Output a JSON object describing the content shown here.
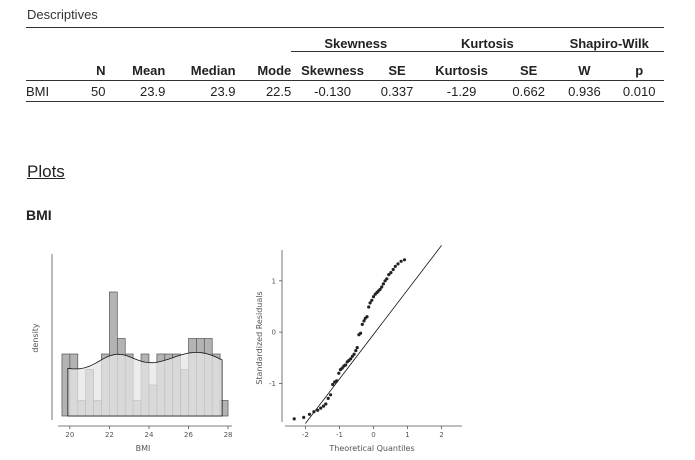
{
  "section_title": "Descriptives",
  "table": {
    "groups": [
      "Skewness",
      "Kurtosis",
      "Shapiro-Wilk"
    ],
    "headers": [
      "",
      "N",
      "Mean",
      "Median",
      "Mode",
      "Skewness",
      "SE",
      "Kurtosis",
      "SE",
      "W",
      "p"
    ],
    "rows": [
      [
        "BMI",
        "50",
        "23.9",
        "23.9",
        "22.5",
        "-0.130",
        "0.337",
        "-1.29",
        "0.662",
        "0.936",
        "0.010"
      ]
    ]
  },
  "plots_heading": "Plots",
  "variable_heading": "BMI",
  "histogram": {
    "ylabel": "density",
    "xlabel": "BMI",
    "x_ticks": [
      "20",
      "22",
      "24",
      "26",
      "28"
    ]
  },
  "qq": {
    "ylabel": "Standardized Residuals",
    "xlabel": "Theoretical Quantiles",
    "x_ticks": [
      "-2",
      "-1",
      "0",
      "1",
      "2"
    ],
    "y_ticks": [
      "1",
      "0",
      "-1"
    ]
  },
  "chart_data": [
    {
      "type": "bar",
      "title": "",
      "xlabel": "BMI",
      "ylabel": "density",
      "x_range": [
        19.4,
        28.2
      ],
      "bin_edges": [
        19.6,
        20.0,
        20.4,
        20.8,
        21.2,
        21.6,
        22.0,
        22.4,
        22.8,
        23.2,
        23.6,
        24.0,
        24.4,
        24.8,
        25.2,
        25.6,
        26.0,
        26.4,
        26.8,
        27.2,
        27.6,
        28.0
      ],
      "counts": [
        4,
        4,
        1,
        3,
        1,
        4,
        8,
        5,
        4,
        1,
        4,
        2,
        4,
        4,
        4,
        3,
        5,
        5,
        5,
        4,
        1
      ],
      "colors": {
        "bars": "#b3b3b3",
        "density_fill": "#e6e6e6",
        "edge": "#555555"
      }
    },
    {
      "type": "scatter",
      "title": "",
      "xlabel": "Theoretical Quantiles",
      "ylabel": "Standardized Residuals",
      "xlim": [
        -2.6,
        2.6
      ],
      "ylim": [
        -1.75,
        1.6
      ],
      "points": [
        [
          -2.33,
          -1.69
        ],
        [
          -2.05,
          -1.66
        ],
        [
          -1.88,
          -1.6
        ],
        [
          -1.75,
          -1.55
        ],
        [
          -1.64,
          -1.52
        ],
        [
          -1.55,
          -1.48
        ],
        [
          -1.47,
          -1.44
        ],
        [
          -1.4,
          -1.4
        ],
        [
          -1.33,
          -1.29
        ],
        [
          -1.26,
          -1.22
        ],
        [
          -1.2,
          -1.02
        ],
        [
          -1.14,
          -0.97
        ],
        [
          -1.08,
          -0.95
        ],
        [
          -1.02,
          -0.8
        ],
        [
          -0.97,
          -0.73
        ],
        [
          -0.92,
          -0.7
        ],
        [
          -0.87,
          -0.66
        ],
        [
          -0.82,
          -0.64
        ],
        [
          -0.77,
          -0.58
        ],
        [
          -0.72,
          -0.55
        ],
        [
          -0.67,
          -0.52
        ],
        [
          -0.62,
          -0.47
        ],
        [
          -0.57,
          -0.43
        ],
        [
          -0.52,
          -0.36
        ],
        [
          -0.48,
          -0.3
        ],
        [
          -0.43,
          -0.05
        ],
        [
          -0.38,
          -0.02
        ],
        [
          -0.33,
          0.15
        ],
        [
          -0.28,
          0.22
        ],
        [
          -0.24,
          0.27
        ],
        [
          -0.19,
          0.3
        ],
        [
          -0.14,
          0.49
        ],
        [
          -0.1,
          0.57
        ],
        [
          -0.05,
          0.62
        ],
        [
          0.0,
          0.69
        ],
        [
          0.05,
          0.74
        ],
        [
          0.1,
          0.77
        ],
        [
          0.14,
          0.8
        ],
        [
          0.19,
          0.83
        ],
        [
          0.24,
          0.88
        ],
        [
          0.29,
          0.94
        ],
        [
          0.34,
          1.0
        ],
        [
          0.39,
          1.04
        ],
        [
          0.45,
          1.12
        ],
        [
          0.51,
          1.16
        ],
        [
          0.58,
          1.22
        ],
        [
          0.64,
          1.28
        ],
        [
          0.72,
          1.33
        ],
        [
          0.81,
          1.38
        ],
        [
          0.91,
          1.41
        ]
      ],
      "reference_line": [
        [
          -2.0,
          -1.78
        ],
        [
          2.0,
          1.69
        ]
      ]
    }
  ]
}
